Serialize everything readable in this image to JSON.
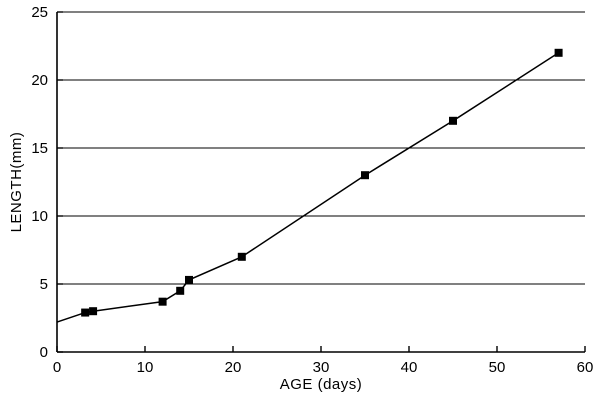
{
  "chart_data": {
    "type": "scatter",
    "title": "",
    "xlabel": "AGE (days)",
    "ylabel": "LENGTH(mm)",
    "xlim": [
      0,
      60
    ],
    "ylim": [
      0,
      25
    ],
    "xticks": [
      0,
      10,
      20,
      30,
      40,
      50,
      60
    ],
    "yticks": [
      0,
      5,
      10,
      15,
      20,
      25
    ],
    "grid": "horizontal",
    "legend": "none",
    "line_color": "#000000",
    "marker": "filled-square",
    "line_points": [
      [
        0,
        2.2
      ],
      [
        3.2,
        2.9
      ],
      [
        4.1,
        3.0
      ],
      [
        12,
        3.7
      ],
      [
        14,
        4.5
      ],
      [
        15,
        5.3
      ],
      [
        21,
        7.0
      ],
      [
        35,
        13.0
      ],
      [
        45,
        17.0
      ],
      [
        57,
        22.0
      ]
    ],
    "points": [
      [
        3.2,
        2.9
      ],
      [
        4.1,
        3.0
      ],
      [
        12,
        3.7
      ],
      [
        14,
        4.5
      ],
      [
        15,
        5.3
      ],
      [
        21,
        7.0
      ],
      [
        35,
        13.0
      ],
      [
        45,
        17.0
      ],
      [
        57,
        22.0
      ]
    ]
  }
}
